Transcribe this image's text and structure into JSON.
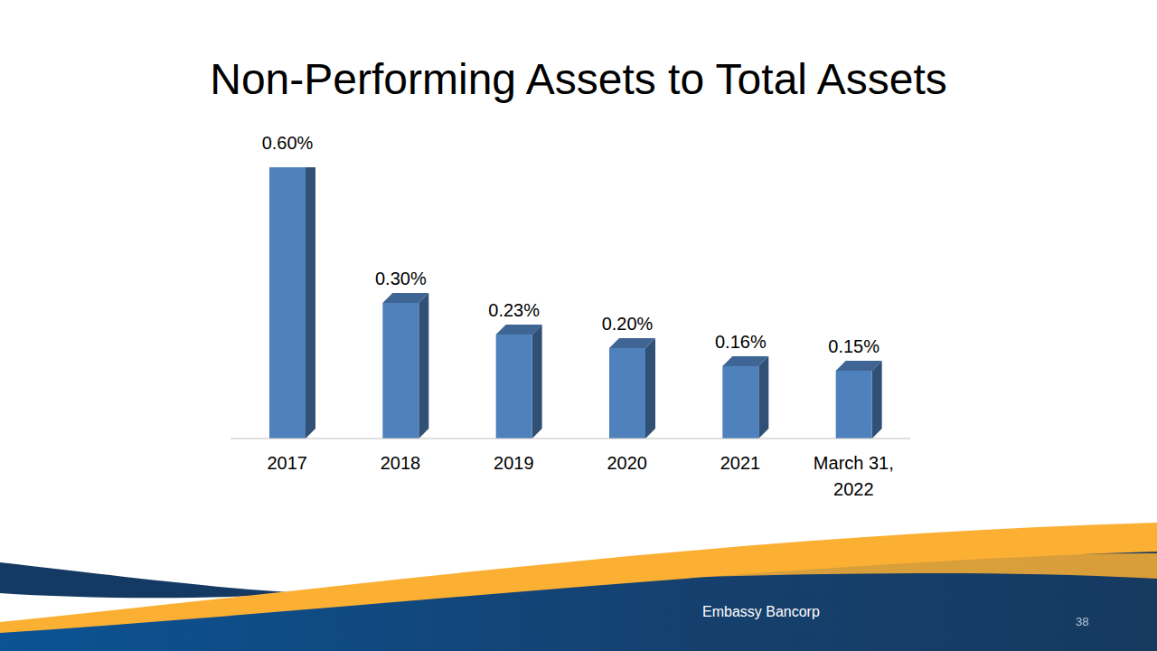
{
  "chart_data": {
    "type": "bar",
    "title": "Non-Performing Assets to Total Assets",
    "categories": [
      "2017",
      "2018",
      "2019",
      "2020",
      "2021",
      "March 31, 2022"
    ],
    "values": [
      0.6,
      0.3,
      0.23,
      0.2,
      0.16,
      0.15
    ],
    "value_labels": [
      "0.60%",
      "0.30%",
      "0.23%",
      "0.20%",
      "0.16%",
      "0.15%"
    ],
    "color": "#4f81bd",
    "ylim": [
      0,
      0.6
    ],
    "data_labels": true,
    "tick_labels": "x",
    "grid": false
  },
  "footer": {
    "text": "Embassy Bancorp",
    "page": 38
  }
}
